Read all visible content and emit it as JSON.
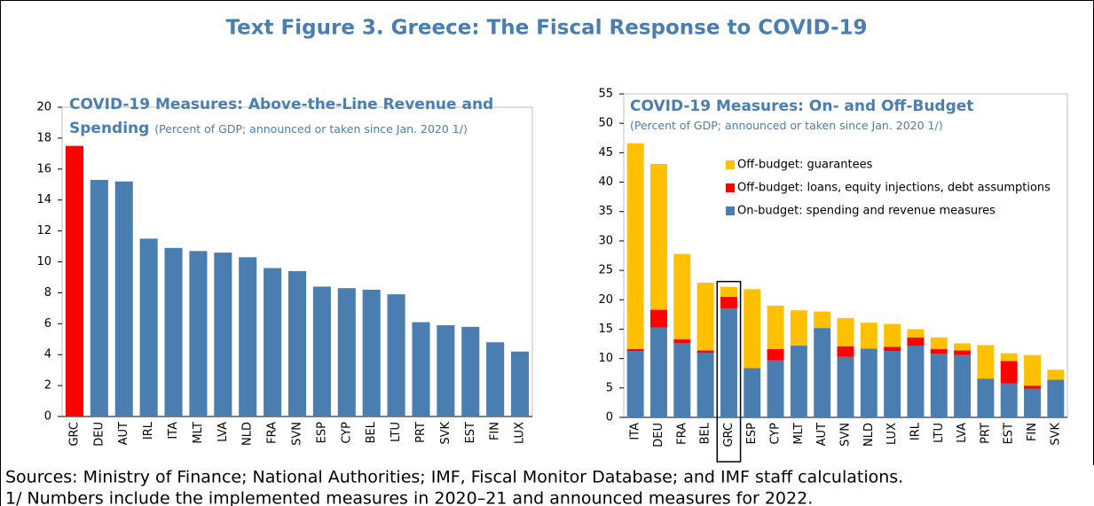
{
  "title": "Text Figure 3. Greece: The Fiscal Response to COVID-19",
  "sources": "Sources: Ministry of Finance; National Authorities; IMF, Fiscal Monitor Database; and IMF staff calculations.",
  "note": "1/ Numbers include the implemented measures in 2020–21 and announced measures for 2022.",
  "chart_data": [
    {
      "type": "bar",
      "title": "COVID-19 Measures: Above-the-Line Revenue and Spending",
      "subtitle": "(Percent of GDP; announced or taken since Jan. 2020 1/)",
      "categories": [
        "GRC",
        "DEU",
        "AUT",
        "IRL",
        "ITA",
        "MLT",
        "LVA",
        "NLD",
        "FRA",
        "SVN",
        "ESP",
        "CYP",
        "BEL",
        "LTU",
        "PRT",
        "SVK",
        "EST",
        "FIN",
        "LUX"
      ],
      "values": [
        17.5,
        15.3,
        15.2,
        11.5,
        10.9,
        10.7,
        10.6,
        10.3,
        9.6,
        9.4,
        8.4,
        8.3,
        8.2,
        7.9,
        6.1,
        5.9,
        5.8,
        4.8,
        4.2
      ],
      "colors": [
        "#ff0000",
        "#4a7eb0",
        "#4a7eb0",
        "#4a7eb0",
        "#4a7eb0",
        "#4a7eb0",
        "#4a7eb0",
        "#4a7eb0",
        "#4a7eb0",
        "#4a7eb0",
        "#4a7eb0",
        "#4a7eb0",
        "#4a7eb0",
        "#4a7eb0",
        "#4a7eb0",
        "#4a7eb0",
        "#4a7eb0",
        "#4a7eb0",
        "#4a7eb0"
      ],
      "ylim": [
        0,
        20
      ],
      "yticks": [
        0,
        2,
        4,
        6,
        8,
        10,
        12,
        14,
        16,
        18,
        20
      ],
      "grid": false
    },
    {
      "type": "stacked_bar",
      "title": "COVID-19 Measures: On- and Off-Budget",
      "subtitle": "(Percent of GDP; announced or taken since Jan. 2020 1/)",
      "categories": [
        "ITA",
        "DEU",
        "FRA",
        "BEL",
        "GRC",
        "ESP",
        "CYP",
        "MLT",
        "AUT",
        "SVN",
        "NLD",
        "LUX",
        "IRL",
        "LTU",
        "LVA",
        "PRT",
        "EST",
        "FIN",
        "SVK"
      ],
      "series": [
        {
          "name": "On-budget: spending and revenue measures",
          "color": "#4a7eb0",
          "values": [
            11.3,
            15.3,
            12.6,
            11.0,
            18.5,
            8.4,
            9.7,
            12.2,
            15.2,
            10.3,
            11.7,
            11.3,
            12.2,
            10.8,
            10.6,
            6.6,
            5.8,
            4.9,
            6.4
          ]
        },
        {
          "name": "Off-budget: loans, equity injections, debt assumptions",
          "color": "#ff0000",
          "values": [
            0.3,
            3.0,
            0.7,
            0.4,
            2.0,
            0,
            1.9,
            0,
            0,
            1.8,
            0,
            0.7,
            1.4,
            0.8,
            0.8,
            0,
            3.8,
            0.5,
            0
          ]
        },
        {
          "name": "Off-budget: guarantees",
          "color": "#ffc000",
          "values": [
            35.0,
            24.8,
            14.5,
            11.5,
            1.7,
            13.4,
            7.4,
            6.0,
            2.8,
            4.8,
            4.4,
            3.9,
            1.4,
            2.0,
            1.2,
            5.7,
            1.3,
            5.2,
            1.7
          ]
        }
      ],
      "highlight": "GRC",
      "ylim": [
        0,
        55
      ],
      "yticks": [
        0,
        5,
        10,
        15,
        20,
        25,
        30,
        35,
        40,
        45,
        50,
        55
      ],
      "grid": false
    }
  ]
}
